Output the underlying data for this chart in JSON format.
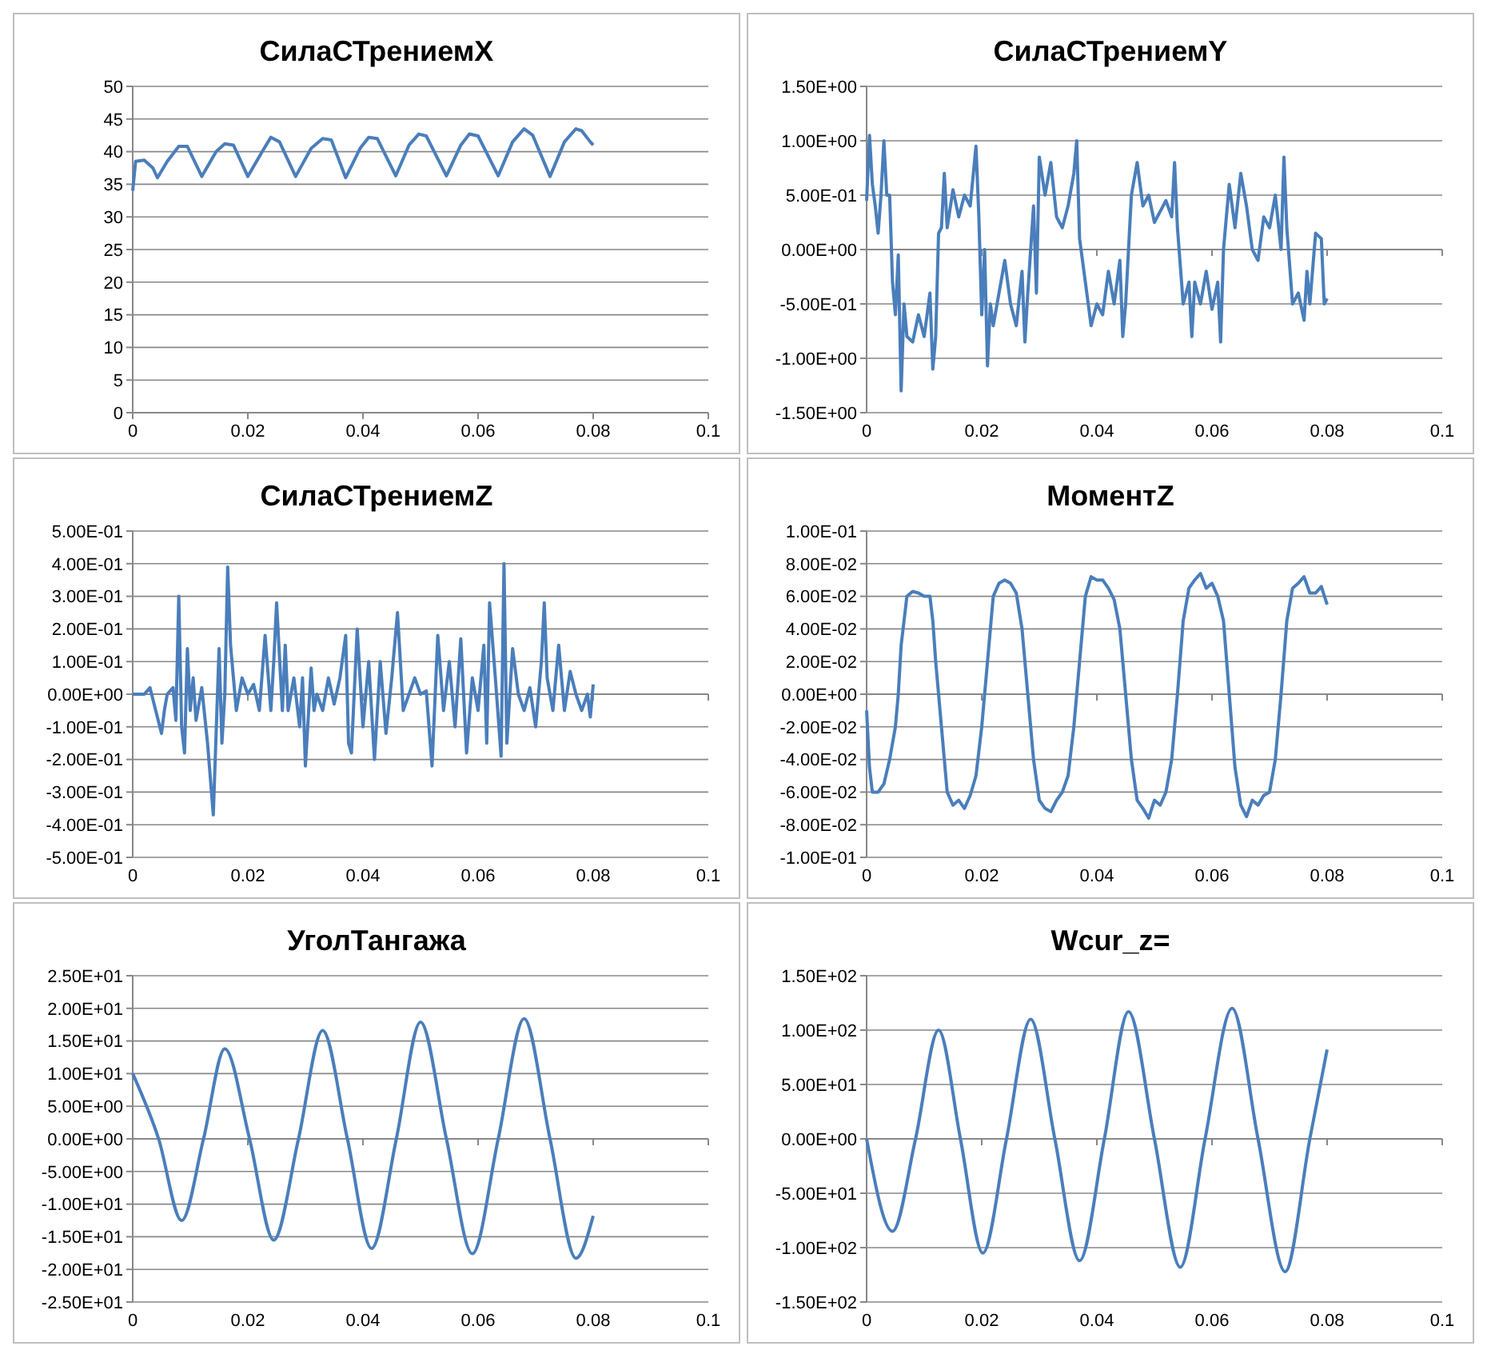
{
  "chart_data": [
    {
      "type": "line",
      "title": "СилаСТрениемX",
      "color": "#4a7ebb",
      "grid": "y",
      "xlim": [
        0,
        0.1
      ],
      "xticks": [
        0,
        0.02,
        0.04,
        0.06,
        0.08,
        0.1
      ],
      "ylim": [
        0,
        50
      ],
      "yticks": [
        0,
        5,
        10,
        15,
        20,
        25,
        30,
        35,
        40,
        45,
        50
      ],
      "x": [
        0,
        0.0005,
        0.002,
        0.0035,
        0.0043,
        0.006,
        0.008,
        0.0095,
        0.012,
        0.0145,
        0.016,
        0.0175,
        0.02,
        0.0225,
        0.024,
        0.0255,
        0.0283,
        0.031,
        0.033,
        0.0345,
        0.037,
        0.0395,
        0.041,
        0.0425,
        0.0457,
        0.048,
        0.0497,
        0.051,
        0.0545,
        0.057,
        0.0585,
        0.06,
        0.0635,
        0.066,
        0.068,
        0.0695,
        0.0725,
        0.075,
        0.077,
        0.078,
        0.0795,
        0.08
      ],
      "values": [
        34,
        38.5,
        38.7,
        37.5,
        36,
        38.5,
        40.8,
        40.8,
        36.2,
        40,
        41.2,
        41,
        36.2,
        40,
        42.2,
        41.5,
        36.2,
        40.5,
        42,
        41.8,
        36,
        40.5,
        42.2,
        42,
        36.3,
        41,
        42.7,
        42.4,
        36.3,
        41,
        42.7,
        42.4,
        36.3,
        41.5,
        43.5,
        42.5,
        36.2,
        41.5,
        43.5,
        43.2,
        41.5,
        41
      ]
    },
    {
      "type": "line",
      "title": "СилаСТрениемY",
      "color": "#4a7ebb",
      "grid": "y",
      "xlim": [
        0,
        0.1
      ],
      "xticks": [
        0,
        0.02,
        0.04,
        0.06,
        0.08,
        0.1
      ],
      "ylim": [
        -1.5,
        1.5
      ],
      "yticks": [
        {
          "value": -1.5,
          "label": "-1.50E+00"
        },
        {
          "value": -1,
          "label": "-1.00E+00"
        },
        {
          "value": -0.5,
          "label": "-5.00E-01"
        },
        {
          "value": 0,
          "label": "0.00E+00"
        },
        {
          "value": 0.5,
          "label": "5.00E-01"
        },
        {
          "value": 1,
          "label": "1.00E+00"
        },
        {
          "value": 1.5,
          "label": "1.50E+00"
        }
      ],
      "x": [
        0,
        0.0005,
        0.001,
        0.0015,
        0.002,
        0.0025,
        0.003,
        0.0035,
        0.004,
        0.0045,
        0.005,
        0.0055,
        0.006,
        0.0065,
        0.007,
        0.008,
        0.009,
        0.01,
        0.011,
        0.0115,
        0.012,
        0.0125,
        0.013,
        0.0135,
        0.014,
        0.015,
        0.016,
        0.017,
        0.018,
        0.019,
        0.0195,
        0.02,
        0.0205,
        0.021,
        0.0215,
        0.022,
        0.023,
        0.024,
        0.025,
        0.026,
        0.027,
        0.0275,
        0.028,
        0.029,
        0.0295,
        0.03,
        0.031,
        0.032,
        0.033,
        0.034,
        0.035,
        0.036,
        0.0365,
        0.037,
        0.038,
        0.039,
        0.04,
        0.041,
        0.042,
        0.043,
        0.044,
        0.0445,
        0.045,
        0.046,
        0.047,
        0.048,
        0.049,
        0.05,
        0.051,
        0.052,
        0.053,
        0.0535,
        0.054,
        0.055,
        0.056,
        0.0565,
        0.057,
        0.058,
        0.059,
        0.06,
        0.061,
        0.0615,
        0.062,
        0.063,
        0.064,
        0.065,
        0.066,
        0.067,
        0.068,
        0.069,
        0.07,
        0.071,
        0.072,
        0.0725,
        0.073,
        0.074,
        0.075,
        0.076,
        0.0765,
        0.077,
        0.078,
        0.079,
        0.0795,
        0.08
      ],
      "values": [
        0.45,
        1.05,
        0.6,
        0.4,
        0.15,
        0.5,
        1.0,
        0.5,
        0.5,
        -0.3,
        -0.6,
        -0.05,
        -1.3,
        -0.5,
        -0.8,
        -0.85,
        -0.6,
        -0.8,
        -0.4,
        -1.1,
        -0.8,
        0.15,
        0.2,
        0.7,
        0.2,
        0.55,
        0.3,
        0.5,
        0.4,
        0.95,
        0.3,
        -0.6,
        0.0,
        -1.07,
        -0.5,
        -0.7,
        -0.4,
        -0.1,
        -0.5,
        -0.7,
        -0.2,
        -0.85,
        -0.4,
        0.4,
        -0.4,
        0.85,
        0.5,
        0.8,
        0.3,
        0.2,
        0.4,
        0.7,
        1.0,
        0.1,
        -0.3,
        -0.7,
        -0.5,
        -0.6,
        -0.2,
        -0.5,
        -0.1,
        -0.8,
        -0.5,
        0.5,
        0.8,
        0.4,
        0.5,
        0.25,
        0.35,
        0.45,
        0.3,
        0.8,
        0.2,
        -0.5,
        -0.3,
        -0.8,
        -0.3,
        -0.5,
        -0.2,
        -0.55,
        -0.3,
        -0.85,
        0.0,
        0.6,
        0.2,
        0.7,
        0.4,
        0.0,
        -0.1,
        0.3,
        0.2,
        0.5,
        0.0,
        0.85,
        0.2,
        -0.5,
        -0.4,
        -0.65,
        -0.2,
        -0.5,
        0.15,
        0.1,
        -0.5,
        -0.45
      ]
    },
    {
      "type": "line",
      "title": "СилаСТрениемZ",
      "color": "#4a7ebb",
      "grid": "y",
      "xlim": [
        0,
        0.1
      ],
      "xticks": [
        0,
        0.02,
        0.04,
        0.06,
        0.08,
        0.1
      ],
      "ylim": [
        -0.5,
        0.5
      ],
      "yticks": [
        {
          "value": -0.5,
          "label": "-5.00E-01"
        },
        {
          "value": -0.4,
          "label": "-4.00E-01"
        },
        {
          "value": -0.3,
          "label": "-3.00E-01"
        },
        {
          "value": -0.2,
          "label": "-2.00E-01"
        },
        {
          "value": -0.1,
          "label": "-1.00E-01"
        },
        {
          "value": 0,
          "label": "0.00E+00"
        },
        {
          "value": 0.1,
          "label": "1.00E-01"
        },
        {
          "value": 0.2,
          "label": "2.00E-01"
        },
        {
          "value": 0.3,
          "label": "3.00E-01"
        },
        {
          "value": 0.4,
          "label": "4.00E-01"
        },
        {
          "value": 0.5,
          "label": "5.00E-01"
        }
      ],
      "x": [
        0,
        0.002,
        0.003,
        0.004,
        0.005,
        0.0055,
        0.006,
        0.007,
        0.0075,
        0.008,
        0.0085,
        0.009,
        0.0095,
        0.01,
        0.0105,
        0.011,
        0.012,
        0.013,
        0.014,
        0.015,
        0.0155,
        0.016,
        0.0165,
        0.017,
        0.018,
        0.019,
        0.02,
        0.021,
        0.022,
        0.023,
        0.024,
        0.0245,
        0.025,
        0.026,
        0.0265,
        0.027,
        0.028,
        0.029,
        0.0295,
        0.03,
        0.031,
        0.0315,
        0.032,
        0.033,
        0.034,
        0.035,
        0.036,
        0.037,
        0.0375,
        0.038,
        0.039,
        0.04,
        0.041,
        0.042,
        0.043,
        0.044,
        0.045,
        0.046,
        0.047,
        0.048,
        0.049,
        0.05,
        0.051,
        0.052,
        0.053,
        0.054,
        0.055,
        0.056,
        0.057,
        0.058,
        0.059,
        0.06,
        0.061,
        0.0615,
        0.062,
        0.063,
        0.064,
        0.0645,
        0.065,
        0.066,
        0.067,
        0.068,
        0.069,
        0.07,
        0.071,
        0.0715,
        0.072,
        0.073,
        0.074,
        0.075,
        0.076,
        0.077,
        0.078,
        0.079,
        0.0795,
        0.08
      ],
      "values": [
        0,
        0,
        0.02,
        -0.05,
        -0.12,
        -0.05,
        0,
        0.02,
        -0.08,
        0.3,
        -0.1,
        -0.18,
        0.14,
        -0.05,
        0.05,
        -0.08,
        0.02,
        -0.15,
        -0.37,
        0.14,
        -0.15,
        0,
        0.39,
        0.15,
        -0.05,
        0.05,
        0,
        0.03,
        -0.05,
        0.18,
        -0.05,
        0.1,
        0.28,
        -0.05,
        0.15,
        -0.05,
        0.05,
        -0.1,
        0.05,
        -0.22,
        0.08,
        -0.05,
        0,
        -0.05,
        0.05,
        -0.03,
        0.05,
        0.18,
        -0.15,
        -0.18,
        0.2,
        -0.1,
        0.1,
        -0.2,
        0.1,
        -0.12,
        0.05,
        0.25,
        -0.05,
        0,
        0.05,
        0,
        0.01,
        -0.22,
        0.18,
        -0.05,
        0.1,
        -0.1,
        0.17,
        -0.18,
        0.05,
        -0.05,
        0.15,
        -0.15,
        0.28,
        0.05,
        -0.19,
        0.4,
        -0.15,
        0.14,
        0,
        -0.05,
        0.02,
        -0.1,
        0.1,
        0.28,
        0.05,
        -0.05,
        0.15,
        -0.05,
        0.07,
        0,
        -0.05,
        0,
        -0.07,
        0.03
      ]
    },
    {
      "type": "line",
      "title": "МоментZ",
      "color": "#4a7ebb",
      "grid": "y",
      "xlim": [
        0,
        0.1
      ],
      "xticks": [
        0,
        0.02,
        0.04,
        0.06,
        0.08,
        0.1
      ],
      "ylim": [
        -0.1,
        0.1
      ],
      "yticks": [
        {
          "value": -0.1,
          "label": "-1.00E-01"
        },
        {
          "value": -0.08,
          "label": "-8.00E-02"
        },
        {
          "value": -0.06,
          "label": "-6.00E-02"
        },
        {
          "value": -0.04,
          "label": "-4.00E-02"
        },
        {
          "value": -0.02,
          "label": "-2.00E-02"
        },
        {
          "value": 0,
          "label": "0.00E+00"
        },
        {
          "value": 0.02,
          "label": "2.00E-02"
        },
        {
          "value": 0.04,
          "label": "4.00E-02"
        },
        {
          "value": 0.06,
          "label": "6.00E-02"
        },
        {
          "value": 0.08,
          "label": "8.00E-02"
        },
        {
          "value": 0.1,
          "label": "1.00E-01"
        }
      ],
      "x": [
        0,
        0.0005,
        0.001,
        0.002,
        0.003,
        0.004,
        0.005,
        0.0055,
        0.006,
        0.007,
        0.008,
        0.009,
        0.01,
        0.011,
        0.0115,
        0.012,
        0.013,
        0.014,
        0.015,
        0.016,
        0.017,
        0.018,
        0.019,
        0.02,
        0.021,
        0.022,
        0.023,
        0.024,
        0.025,
        0.026,
        0.027,
        0.028,
        0.029,
        0.03,
        0.031,
        0.032,
        0.033,
        0.034,
        0.035,
        0.036,
        0.037,
        0.038,
        0.039,
        0.04,
        0.041,
        0.042,
        0.043,
        0.044,
        0.045,
        0.046,
        0.047,
        0.048,
        0.049,
        0.05,
        0.051,
        0.052,
        0.053,
        0.054,
        0.055,
        0.056,
        0.057,
        0.058,
        0.059,
        0.06,
        0.061,
        0.062,
        0.063,
        0.064,
        0.065,
        0.066,
        0.067,
        0.068,
        0.069,
        0.07,
        0.071,
        0.072,
        0.073,
        0.074,
        0.075,
        0.076,
        0.077,
        0.078,
        0.079,
        0.08
      ],
      "values": [
        -0.01,
        -0.045,
        -0.06,
        -0.06,
        -0.055,
        -0.04,
        -0.02,
        0,
        0.03,
        0.06,
        0.063,
        0.062,
        0.06,
        0.06,
        0.045,
        0.02,
        -0.02,
        -0.06,
        -0.068,
        -0.065,
        -0.07,
        -0.062,
        -0.05,
        -0.02,
        0.02,
        0.06,
        0.068,
        0.07,
        0.068,
        0.062,
        0.04,
        0,
        -0.04,
        -0.065,
        -0.07,
        -0.072,
        -0.065,
        -0.06,
        -0.05,
        -0.02,
        0.02,
        0.06,
        0.072,
        0.07,
        0.07,
        0.065,
        0.058,
        0.04,
        0,
        -0.04,
        -0.065,
        -0.07,
        -0.076,
        -0.065,
        -0.068,
        -0.06,
        -0.04,
        0,
        0.045,
        0.065,
        0.07,
        0.074,
        0.065,
        0.068,
        0.06,
        0.045,
        0,
        -0.045,
        -0.068,
        -0.075,
        -0.065,
        -0.068,
        -0.062,
        -0.06,
        -0.04,
        0,
        0.045,
        0.065,
        0.068,
        0.072,
        0.062,
        0.062,
        0.066,
        0.055
      ]
    },
    {
      "type": "line",
      "title": "УголТангажа",
      "color": "#4a7ebb",
      "grid": "y",
      "xlim": [
        0,
        0.1
      ],
      "xticks": [
        0,
        0.02,
        0.04,
        0.06,
        0.08,
        0.1
      ],
      "ylim": [
        -25,
        25
      ],
      "yticks": [
        {
          "value": -25,
          "label": "-2.50E+01"
        },
        {
          "value": -20,
          "label": "-2.00E+01"
        },
        {
          "value": -15,
          "label": "-1.50E+01"
        },
        {
          "value": -10,
          "label": "-1.00E+01"
        },
        {
          "value": -5,
          "label": "-5.00E+00"
        },
        {
          "value": 0,
          "label": "0.00E+00"
        },
        {
          "value": 5,
          "label": "5.00E+00"
        },
        {
          "value": 10,
          "label": "1.00E+01"
        },
        {
          "value": 15,
          "label": "1.50E+01"
        },
        {
          "value": 20,
          "label": "2.00E+01"
        },
        {
          "value": 25,
          "label": "2.50E+01"
        }
      ],
      "x": [
        0,
        0.0045,
        0.0085,
        0.0123,
        0.016,
        0.0203,
        0.0245,
        0.0288,
        0.033,
        0.0373,
        0.0415,
        0.0458,
        0.05,
        0.0545,
        0.059,
        0.0635,
        0.068,
        0.0725,
        0.077,
        0.08
      ],
      "values": [
        10,
        0,
        -12.5,
        0,
        13.8,
        0,
        -15.5,
        0,
        16.6,
        0,
        -16.8,
        0,
        17.9,
        0,
        -17.6,
        0,
        18.4,
        0,
        -18.3,
        -11.8
      ]
    },
    {
      "type": "line",
      "title": "Wcur_z=",
      "color": "#4a7ebb",
      "grid": "y",
      "xlim": [
        0,
        0.1
      ],
      "xticks": [
        0,
        0.02,
        0.04,
        0.06,
        0.08,
        0.1
      ],
      "ylim": [
        -150,
        150
      ],
      "yticks": [
        {
          "value": -150,
          "label": "-1.50E+02"
        },
        {
          "value": -100,
          "label": "-1.00E+02"
        },
        {
          "value": -50,
          "label": "-5.00E+01"
        },
        {
          "value": 0,
          "label": "0.00E+00"
        },
        {
          "value": 50,
          "label": "5.00E+01"
        },
        {
          "value": 100,
          "label": "1.00E+02"
        },
        {
          "value": 150,
          "label": "1.50E+02"
        }
      ],
      "x": [
        0,
        0.0045,
        0.0085,
        0.0125,
        0.0163,
        0.0202,
        0.0243,
        0.0285,
        0.0327,
        0.037,
        0.0413,
        0.0455,
        0.05,
        0.0545,
        0.0588,
        0.0635,
        0.068,
        0.0727,
        0.077,
        0.08
      ],
      "values": [
        0,
        -85,
        0,
        100,
        0,
        -105,
        0,
        110,
        0,
        -112,
        0,
        117,
        0,
        -118,
        0,
        120,
        0,
        -122,
        0,
        82
      ]
    }
  ]
}
